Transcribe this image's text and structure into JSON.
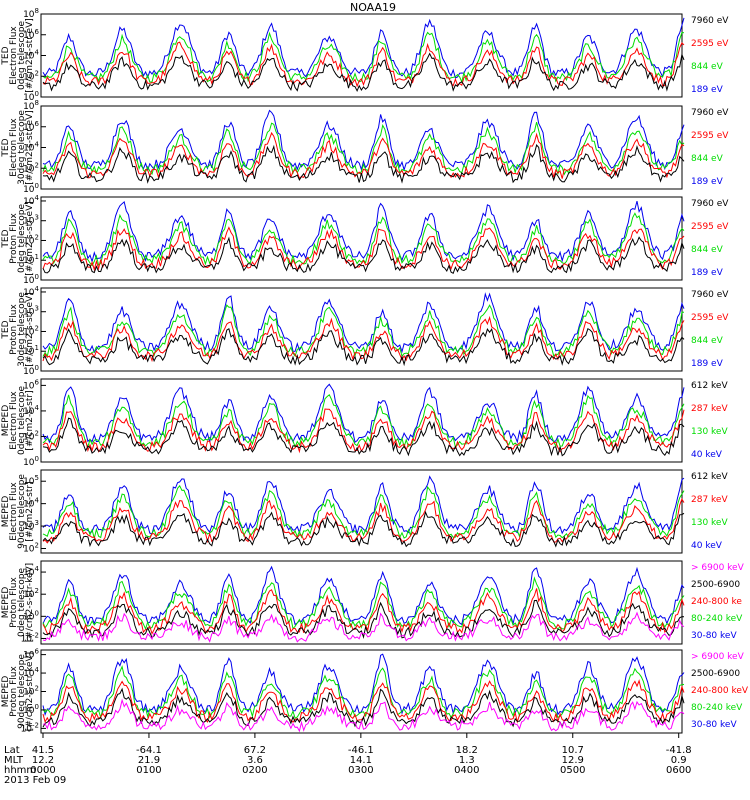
{
  "title": "NOAA19",
  "colors": {
    "black": "#000000",
    "red": "#ff0000",
    "green": "#00dd00",
    "blue": "#0000ee",
    "magenta": "#ff00ff"
  },
  "panels": [
    {
      "ylabel": [
        "TED",
        "Electron Flux",
        "0deg telescope",
        "[#/cm2-s-str-eV]"
      ],
      "yexp": [
        0,
        2,
        4,
        6,
        8
      ],
      "ymin": 0,
      "ymax": 8,
      "legend": [
        {
          "text": "7960 eV",
          "color": "black"
        },
        {
          "text": "2595 eV",
          "color": "red"
        },
        {
          "text": "844 eV",
          "color": "green"
        },
        {
          "text": "189 eV",
          "color": "blue"
        }
      ]
    },
    {
      "ylabel": [
        "TED",
        "Electron Flux",
        "30deg telescope",
        "[#/cm2-s-str-eV]"
      ],
      "yexp": [
        0,
        2,
        4,
        6,
        8
      ],
      "ymin": 0,
      "ymax": 8,
      "legend": [
        {
          "text": "7960 eV",
          "color": "black"
        },
        {
          "text": "2595 eV",
          "color": "red"
        },
        {
          "text": "844 eV",
          "color": "green"
        },
        {
          "text": "189 eV",
          "color": "blue"
        }
      ]
    },
    {
      "ylabel": [
        "TED",
        "Proton Flux",
        "0deg telescope",
        "[#/cm2-s-str-eV]"
      ],
      "yexp": [
        0,
        1,
        2,
        3,
        4
      ],
      "ymin": 0,
      "ymax": 4.2,
      "legend": [
        {
          "text": "7960 eV",
          "color": "black"
        },
        {
          "text": "2595 eV",
          "color": "red"
        },
        {
          "text": "844 eV",
          "color": "green"
        },
        {
          "text": "189 eV",
          "color": "blue"
        }
      ]
    },
    {
      "ylabel": [
        "TED",
        "Proton Flux",
        "30deg telescope",
        "[#/cm2-s-str-eV]"
      ],
      "yexp": [
        0,
        1,
        2,
        3,
        4
      ],
      "ymin": 0,
      "ymax": 4.2,
      "legend": [
        {
          "text": "7960 eV",
          "color": "black"
        },
        {
          "text": "2595 eV",
          "color": "red"
        },
        {
          "text": "844 eV",
          "color": "green"
        },
        {
          "text": "189 eV",
          "color": "blue"
        }
      ]
    },
    {
      "ylabel": [
        "MEPED",
        "Electron Flux",
        "0deg telescope",
        "[#/cm2-s-str]"
      ],
      "yexp": [
        0,
        2,
        4,
        6
      ],
      "ymin": 0,
      "ymax": 6.5,
      "legend": [
        {
          "text": "612 keV",
          "color": "black"
        },
        {
          "text": "287 keV",
          "color": "red"
        },
        {
          "text": "130 keV",
          "color": "green"
        },
        {
          "text": "40 keV",
          "color": "blue"
        }
      ]
    },
    {
      "ylabel": [
        "MEPED",
        "Electron Flux",
        "90deg telescope",
        "[#/cm2-s-str]"
      ],
      "yexp": [
        2,
        3,
        4,
        5
      ],
      "ymin": 1.8,
      "ymax": 5.5,
      "legend": [
        {
          "text": "612 keV",
          "color": "black"
        },
        {
          "text": "287 keV",
          "color": "red"
        },
        {
          "text": "130 keV",
          "color": "green"
        },
        {
          "text": "40 keV",
          "color": "blue"
        }
      ]
    },
    {
      "ylabel": [
        "MEPED",
        "Proton Flux",
        "0deg telescope",
        "[#/cm2-s-str-keV]"
      ],
      "yexp": [
        -2,
        0,
        2,
        4
      ],
      "ymin": -2.5,
      "ymax": 5,
      "legend": [
        {
          "text": "> 6900 keV",
          "color": "magenta"
        },
        {
          "text": "2500-6900",
          "color": "black"
        },
        {
          "text": "240-800 ke",
          "color": "red"
        },
        {
          "text": "80-240 keV",
          "color": "green"
        },
        {
          "text": "30-80 keV",
          "color": "blue"
        }
      ]
    },
    {
      "ylabel": [
        "MEPED",
        "Proton Flux",
        "90deg telescope",
        "[#/cm2-s-str-keV]"
      ],
      "yexp": [
        -2,
        0,
        2,
        4,
        6
      ],
      "ymin": -2.5,
      "ymax": 6.5,
      "legend": [
        {
          "text": "> 6900 keV",
          "color": "magenta"
        },
        {
          "text": "2500-6900",
          "color": "black"
        },
        {
          "text": "240-800 keV",
          "color": "red"
        },
        {
          "text": "80-240 keV",
          "color": "green"
        },
        {
          "text": "30-80 keV",
          "color": "blue"
        }
      ]
    }
  ],
  "axis_rows": [
    {
      "label": "Lat",
      "values": [
        "41.5",
        "-64.1",
        "67.2",
        "-46.1",
        "18.2",
        "10.7",
        "-41.8"
      ]
    },
    {
      "label": "MLT",
      "values": [
        "12.2",
        "21.9",
        "3.6",
        "14.1",
        "1.3",
        "12.9",
        "0.9"
      ]
    },
    {
      "label": "hhmm",
      "values": [
        "0000",
        "0100",
        "0200",
        "0300",
        "0400",
        "0500",
        "0600"
      ]
    }
  ],
  "date": "2013 Feb 09",
  "chart_data": {
    "type": "line",
    "title": "NOAA19",
    "x": [
      "0000",
      "0100",
      "0200",
      "0300",
      "0400",
      "0500",
      "0600"
    ],
    "xlabel": "hhmm",
    "yscale": "log",
    "pass_centers_hours": [
      0.25,
      0.75,
      1.3,
      1.75,
      2.15,
      2.7,
      3.2,
      3.65,
      4.2,
      4.65,
      5.15,
      5.6,
      6.05
    ],
    "series_note": "per-panel series listed in panels[].legend",
    "grid": false
  }
}
